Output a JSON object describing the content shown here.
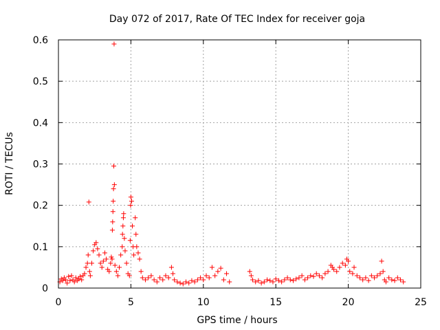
{
  "chart_data": {
    "type": "scatter",
    "title": "Day 072 of 2017, Rate Of TEC Index for receiver goja",
    "xlabel": "GPS time / hours",
    "ylabel": "ROTI / TECUs",
    "xlim": [
      0,
      25
    ],
    "ylim": [
      0,
      0.6
    ],
    "xticks": [
      0,
      5,
      10,
      15,
      20,
      25
    ],
    "xtick_labels": [
      "0",
      "5",
      "10",
      "15",
      "20",
      "25"
    ],
    "yticks": [
      0,
      0.1,
      0.2,
      0.3,
      0.4,
      0.5,
      0.6
    ],
    "ytick_labels": [
      "0",
      "0.1",
      "0.2",
      "0.3",
      "0.4",
      "0.5",
      "0.6"
    ],
    "grid": true,
    "marker": "plus",
    "color": "#ff0000",
    "series": [
      {
        "name": "ROTI",
        "points": [
          [
            0.1,
            0.015
          ],
          [
            0.2,
            0.022
          ],
          [
            0.3,
            0.018
          ],
          [
            0.4,
            0.025
          ],
          [
            0.5,
            0.02
          ],
          [
            0.6,
            0.012
          ],
          [
            0.7,
            0.028
          ],
          [
            0.8,
            0.018
          ],
          [
            0.9,
            0.03
          ],
          [
            1.0,
            0.02
          ],
          [
            1.1,
            0.015
          ],
          [
            1.2,
            0.025
          ],
          [
            1.3,
            0.018
          ],
          [
            1.4,
            0.022
          ],
          [
            1.5,
            0.028
          ],
          [
            1.6,
            0.02
          ],
          [
            1.7,
            0.03
          ],
          [
            1.8,
            0.035
          ],
          [
            1.9,
            0.05
          ],
          [
            2.0,
            0.06
          ],
          [
            2.05,
            0.08
          ],
          [
            2.1,
            0.208
          ],
          [
            2.15,
            0.04
          ],
          [
            2.2,
            0.03
          ],
          [
            2.3,
            0.06
          ],
          [
            2.4,
            0.09
          ],
          [
            2.5,
            0.105
          ],
          [
            2.6,
            0.11
          ],
          [
            2.7,
            0.095
          ],
          [
            2.8,
            0.08
          ],
          [
            2.9,
            0.06
          ],
          [
            3.0,
            0.05
          ],
          [
            3.1,
            0.065
          ],
          [
            3.2,
            0.085
          ],
          [
            3.3,
            0.07
          ],
          [
            3.4,
            0.045
          ],
          [
            3.5,
            0.04
          ],
          [
            3.6,
            0.06
          ],
          [
            3.65,
            0.075
          ],
          [
            3.7,
            0.07
          ],
          [
            3.72,
            0.14
          ],
          [
            3.74,
            0.16
          ],
          [
            3.76,
            0.185
          ],
          [
            3.78,
            0.21
          ],
          [
            3.8,
            0.24
          ],
          [
            3.82,
            0.295
          ],
          [
            3.84,
            0.59
          ],
          [
            3.86,
            0.25
          ],
          [
            3.9,
            0.055
          ],
          [
            4.0,
            0.04
          ],
          [
            4.1,
            0.03
          ],
          [
            4.2,
            0.05
          ],
          [
            4.3,
            0.08
          ],
          [
            4.4,
            0.1
          ],
          [
            4.42,
            0.13
          ],
          [
            4.45,
            0.15
          ],
          [
            4.48,
            0.17
          ],
          [
            4.5,
            0.18
          ],
          [
            4.55,
            0.12
          ],
          [
            4.6,
            0.09
          ],
          [
            4.7,
            0.06
          ],
          [
            4.8,
            0.035
          ],
          [
            4.9,
            0.03
          ],
          [
            4.95,
            0.115
          ],
          [
            4.98,
            0.2
          ],
          [
            5.0,
            0.22
          ],
          [
            5.05,
            0.21
          ],
          [
            5.1,
            0.15
          ],
          [
            5.15,
            0.1
          ],
          [
            5.2,
            0.08
          ],
          [
            5.3,
            0.17
          ],
          [
            5.35,
            0.13
          ],
          [
            5.4,
            0.1
          ],
          [
            5.5,
            0.085
          ],
          [
            5.6,
            0.07
          ],
          [
            5.7,
            0.04
          ],
          [
            5.8,
            0.025
          ],
          [
            6.0,
            0.02
          ],
          [
            6.2,
            0.025
          ],
          [
            6.4,
            0.03
          ],
          [
            6.6,
            0.02
          ],
          [
            6.8,
            0.015
          ],
          [
            7.0,
            0.025
          ],
          [
            7.2,
            0.02
          ],
          [
            7.4,
            0.03
          ],
          [
            7.6,
            0.025
          ],
          [
            7.8,
            0.05
          ],
          [
            7.9,
            0.035
          ],
          [
            8.0,
            0.02
          ],
          [
            8.2,
            0.015
          ],
          [
            8.4,
            0.012
          ],
          [
            8.6,
            0.01
          ],
          [
            8.8,
            0.015
          ],
          [
            9.0,
            0.012
          ],
          [
            9.2,
            0.018
          ],
          [
            9.4,
            0.015
          ],
          [
            9.6,
            0.02
          ],
          [
            9.8,
            0.025
          ],
          [
            10.0,
            0.02
          ],
          [
            10.2,
            0.03
          ],
          [
            10.4,
            0.025
          ],
          [
            10.6,
            0.05
          ],
          [
            10.8,
            0.03
          ],
          [
            11.0,
            0.04
          ],
          [
            11.2,
            0.048
          ],
          [
            11.4,
            0.02
          ],
          [
            11.6,
            0.035
          ],
          [
            11.8,
            0.015
          ],
          [
            13.2,
            0.04
          ],
          [
            13.3,
            0.03
          ],
          [
            13.4,
            0.02
          ],
          [
            13.6,
            0.015
          ],
          [
            13.8,
            0.018
          ],
          [
            14.0,
            0.012
          ],
          [
            14.2,
            0.015
          ],
          [
            14.4,
            0.02
          ],
          [
            14.6,
            0.018
          ],
          [
            14.8,
            0.015
          ],
          [
            15.0,
            0.022
          ],
          [
            15.2,
            0.018
          ],
          [
            15.4,
            0.015
          ],
          [
            15.6,
            0.02
          ],
          [
            15.8,
            0.025
          ],
          [
            16.0,
            0.02
          ],
          [
            16.2,
            0.018
          ],
          [
            16.4,
            0.022
          ],
          [
            16.6,
            0.025
          ],
          [
            16.8,
            0.03
          ],
          [
            17.0,
            0.02
          ],
          [
            17.2,
            0.025
          ],
          [
            17.4,
            0.03
          ],
          [
            17.6,
            0.028
          ],
          [
            17.8,
            0.035
          ],
          [
            18.0,
            0.03
          ],
          [
            18.2,
            0.025
          ],
          [
            18.4,
            0.035
          ],
          [
            18.6,
            0.04
          ],
          [
            18.8,
            0.055
          ],
          [
            18.9,
            0.05
          ],
          [
            19.0,
            0.045
          ],
          [
            19.2,
            0.04
          ],
          [
            19.4,
            0.05
          ],
          [
            19.6,
            0.06
          ],
          [
            19.8,
            0.055
          ],
          [
            19.9,
            0.07
          ],
          [
            20.0,
            0.065
          ],
          [
            20.1,
            0.04
          ],
          [
            20.3,
            0.035
          ],
          [
            20.4,
            0.05
          ],
          [
            20.6,
            0.03
          ],
          [
            20.8,
            0.025
          ],
          [
            21.0,
            0.02
          ],
          [
            21.2,
            0.025
          ],
          [
            21.4,
            0.018
          ],
          [
            21.6,
            0.03
          ],
          [
            21.8,
            0.025
          ],
          [
            22.0,
            0.03
          ],
          [
            22.2,
            0.035
          ],
          [
            22.3,
            0.065
          ],
          [
            22.4,
            0.04
          ],
          [
            22.5,
            0.02
          ],
          [
            22.6,
            0.015
          ],
          [
            22.8,
            0.025
          ],
          [
            23.0,
            0.02
          ],
          [
            23.2,
            0.018
          ],
          [
            23.4,
            0.025
          ],
          [
            23.6,
            0.02
          ],
          [
            23.8,
            0.015
          ]
        ]
      }
    ]
  }
}
